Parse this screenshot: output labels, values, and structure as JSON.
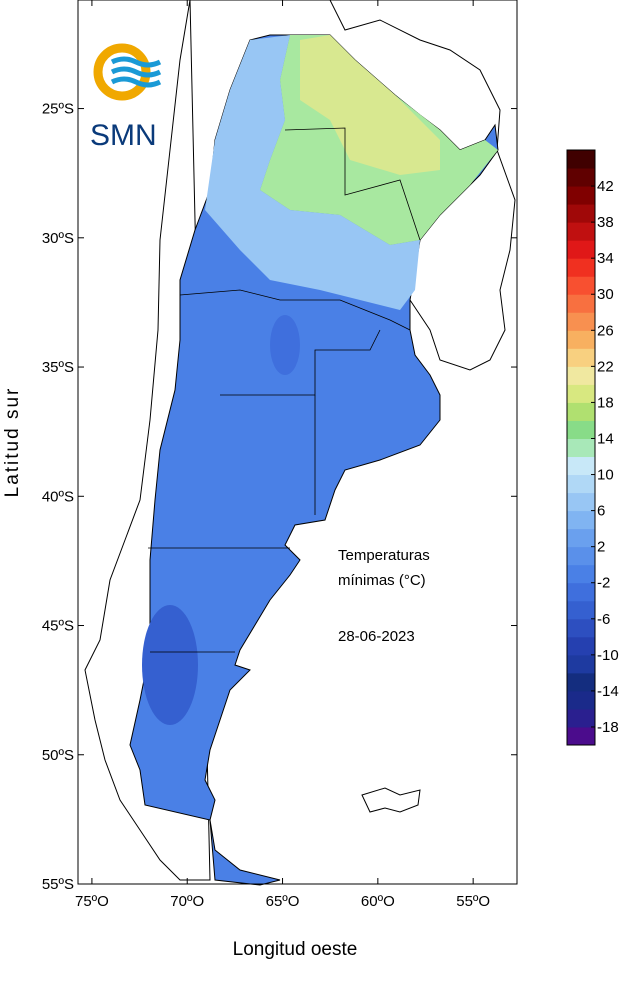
{
  "map": {
    "logo": "SMN",
    "x_label": "Longitud oeste",
    "y_label": "Latitud sur",
    "annotation": [
      "Temperaturas",
      "mínimas (°C)",
      "28-06-2023"
    ],
    "xlim": [
      -75.73,
      -52.7
    ],
    "ylim": [
      -55,
      -20.8
    ],
    "xticks": [
      {
        "value": -75,
        "label": "75ºO"
      },
      {
        "value": -70,
        "label": "70ºO"
      },
      {
        "value": -65,
        "label": "65ºO"
      },
      {
        "value": -60,
        "label": "60ºO"
      },
      {
        "value": -55,
        "label": "55ºO"
      }
    ],
    "yticks": [
      {
        "value": -25,
        "label": "25ºS"
      },
      {
        "value": -30,
        "label": "30ºS"
      },
      {
        "value": -35,
        "label": "35ºS"
      },
      {
        "value": -40,
        "label": "40ºS"
      },
      {
        "value": -45,
        "label": "45ºS"
      },
      {
        "value": -50,
        "label": "50ºS"
      },
      {
        "value": -55,
        "label": "55ºS"
      }
    ],
    "legend": {
      "range": [
        -20,
        46
      ],
      "ticks": [
        42,
        38,
        34,
        30,
        26,
        22,
        18,
        14,
        10,
        6,
        2,
        -2,
        -6,
        -10,
        -14,
        -18
      ],
      "colors": [
        "#4b0c8c",
        "#2a1f8f",
        "#1a2a8a",
        "#142d7f",
        "#1e3aa0",
        "#2540b0",
        "#2d4fc0",
        "#3560d0",
        "#3f6fdd",
        "#4a80e6",
        "#5a90ea",
        "#6aa0ee",
        "#80b4f2",
        "#98c6f4",
        "#b0d8f6",
        "#c8e8f8",
        "#a8e8b8",
        "#88dc88",
        "#b0e070",
        "#d8e880",
        "#f0e8a0",
        "#f8d080",
        "#f8b060",
        "#f89050",
        "#f87040",
        "#f85030",
        "#f03020",
        "#e01818",
        "#c01010",
        "#a00808",
        "#800000",
        "#600000",
        "#400000"
      ]
    }
  }
}
